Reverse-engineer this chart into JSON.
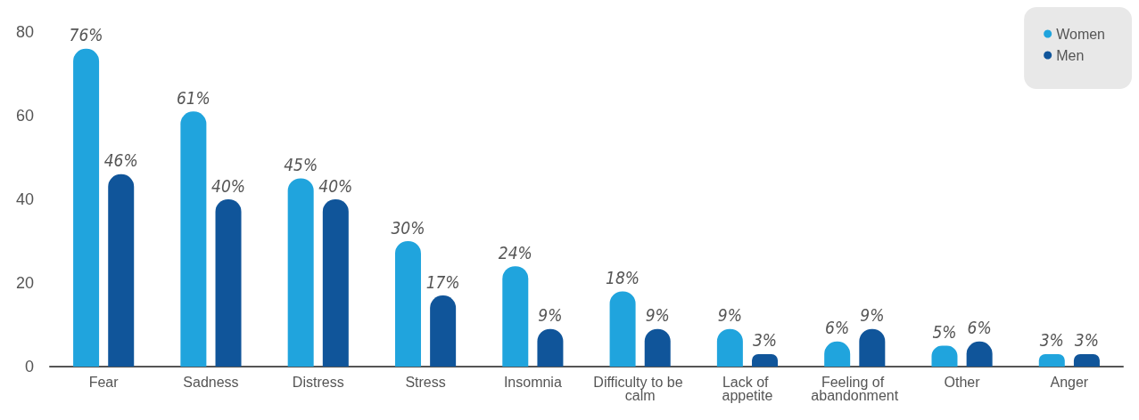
{
  "chart_data": {
    "type": "bar",
    "categories": [
      "Fear",
      "Sadness",
      "Distress",
      "Stress",
      "Insomnia",
      "Difficulty to be calm",
      "Lack of appetite",
      "Feeling of abandonment",
      "Other",
      "Anger"
    ],
    "series": [
      {
        "name": "Women",
        "color": "#20a4dd",
        "values": [
          76,
          61,
          45,
          30,
          24,
          18,
          9,
          6,
          5,
          3
        ],
        "value_labels": [
          "76%",
          "61%",
          "45%",
          "30%",
          "24%",
          "18%",
          "9%",
          "6%",
          "5%",
          "3%"
        ]
      },
      {
        "name": "Men",
        "color": "#10559a",
        "values": [
          46,
          40,
          40,
          17,
          9,
          9,
          3,
          9,
          6,
          3
        ],
        "value_labels": [
          "46%",
          "40%",
          "40%",
          "17%",
          "9%",
          "9%",
          "3%",
          "9%",
          "6%",
          "3%"
        ]
      }
    ],
    "ylim": [
      0,
      80
    ],
    "yticks": [
      0,
      20,
      40,
      60,
      80
    ],
    "grid": false,
    "legend": "top right"
  }
}
